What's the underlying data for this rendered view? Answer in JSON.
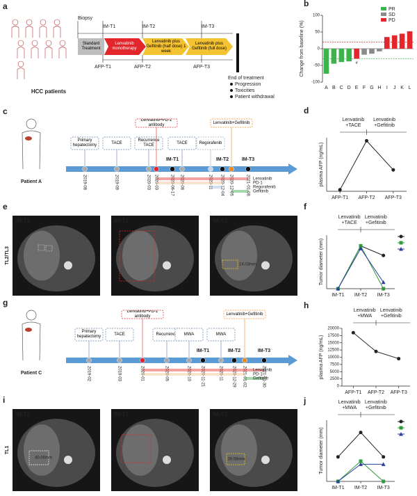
{
  "diagram_a": {
    "panel": "a",
    "caption": "HCC patients",
    "biopsy": "Biopsy",
    "imaging": [
      "IM-T1",
      "IM-T2",
      "IM-T3"
    ],
    "afp": [
      "AFP-T1",
      "AFP-T2",
      "AFP-T3"
    ],
    "stages": [
      "Standard Treatment",
      "Lenvatinib monotherapy",
      "Lenvatinib plus Gefitinib (half dose) 1 week",
      "Lenvatinib plus Gefitinib (full dose)"
    ],
    "end": "End of treatment",
    "end_reasons": [
      "Progression",
      "Toxicities",
      "Patient withdrawal"
    ]
  },
  "timeline_c": {
    "panel": "c",
    "patient": "Patient A",
    "dates": [
      "2019-08",
      "2019-09",
      "2020-03",
      "2020-03",
      "2020-06-17",
      "2020-08",
      "2020-11",
      "2020-12-04",
      "2020-12-05",
      "2021-01-08"
    ],
    "events": [
      "Primary hepatectomy",
      "TACE",
      "Recurrence TACE",
      "Lenvatinib+PD-1 antibody",
      "TACE",
      "Regorafenib",
      "Lenvatinib+Gefitinib"
    ],
    "imaging": [
      "IM-T1",
      "IM-T2",
      "IM-T3"
    ],
    "drugs": [
      {
        "name": "Lenvatinib",
        "color": "#e8352f"
      },
      {
        "name": "PD-1",
        "color": "#f6c28e"
      },
      {
        "name": "Regorafenib",
        "color": "#9db9e0"
      },
      {
        "name": "Gefitinib",
        "color": "#3aa54a"
      }
    ]
  },
  "images_e": {
    "panel": "e",
    "row_label": "TL2/TL3",
    "labels": [
      "IM-T1",
      "IM-T2",
      "IM-T3"
    ],
    "measure": "14.03mm"
  },
  "timeline_g": {
    "panel": "g",
    "patient": "Patient C",
    "dates": [
      "2019-02",
      "2019-03",
      "2020-01",
      "2020-05",
      "2020-10",
      "2020-11-21",
      "2020-11",
      "2020-12-29",
      "2021-01-02",
      "2021-01-30"
    ],
    "events": [
      "Primary hepatectomy",
      "TACE",
      "Lenvatinib+PD-1 antibody",
      "Recurrence",
      "MWA",
      "MWA",
      "Lenvatinib+Gefitinib"
    ],
    "imaging": [
      "IM-T1",
      "IM-T2",
      "IM-T3"
    ],
    "drugs": [
      {
        "name": "Lenvatinib",
        "color": "#e8352f"
      },
      {
        "name": "PD-1",
        "color": "#f6c28e"
      },
      {
        "name": "Gefitinib",
        "color": "#3aa54a"
      }
    ]
  },
  "images_i": {
    "panel": "i",
    "row_label": "TL1",
    "labels": [
      "IM-T1",
      "IM-T2",
      "IM-T3"
    ],
    "measures": [
      "40.00mm",
      "39.58mm"
    ]
  },
  "chart_data": [
    {
      "panel": "b",
      "type": "bar",
      "y_label": "Change from baseline (%)",
      "categories": [
        "A",
        "B",
        "C",
        "D",
        "E",
        "F",
        "G",
        "H",
        "I",
        "J",
        "K",
        "L"
      ],
      "values": [
        -75,
        -45,
        -40,
        -38,
        -30,
        -18,
        -15,
        -8,
        35,
        40,
        45,
        52
      ],
      "response": [
        "PR",
        "PR",
        "PR",
        "PR",
        "PD",
        "SD",
        "SD",
        "SD",
        "PD",
        "PD",
        "PD",
        "PD"
      ],
      "note": {
        "category": "E",
        "text": "#"
      },
      "legend": [
        {
          "name": "PR",
          "color": "#3cb44b"
        },
        {
          "name": "SD",
          "color": "#8a8a8a"
        },
        {
          "name": "PD",
          "color": "#e3262b"
        }
      ],
      "reference_lines": [
        {
          "value": 20,
          "color": "#c0282d"
        },
        {
          "value": -30,
          "color": "#3cb44b"
        }
      ],
      "ylim": [
        -100,
        100
      ],
      "yticks": [
        -100,
        -50,
        0,
        50,
        100
      ]
    },
    {
      "panel": "d",
      "type": "line",
      "y_label": "plasma AFP (ng/mL)",
      "categories": [
        "AFP-T1",
        "AFP-T2",
        "AFP-T3"
      ],
      "phases": [
        [
          "Lenvatinib",
          "+TACE"
        ],
        [
          "Lenvatinib",
          "+Gefitinib"
        ]
      ],
      "phase_colors": [
        [
          "#d9262b",
          "#222222"
        ],
        [
          "#d9262b",
          "#e88a1a"
        ]
      ],
      "series": [
        {
          "color": "#222222",
          "marker": "circle",
          "values": [
            10,
            330,
            140
          ]
        }
      ],
      "ylim": [
        0,
        350
      ]
    },
    {
      "panel": "f",
      "type": "line",
      "y_label": "Tumor diameter (mm)",
      "categories": [
        "IM-T1",
        "IM-T2",
        "IM-T3"
      ],
      "phases": [
        [
          "Lenvatinib",
          "+TACE"
        ],
        [
          "Lenvatinib",
          "+Gefitinib"
        ]
      ],
      "phase_colors": [
        [
          "#d9262b",
          "#222222"
        ],
        [
          "#d9262b",
          "#e88a1a"
        ]
      ],
      "series": [
        {
          "color": "#222222",
          "marker": "circle",
          "values": [
            0,
            80,
            62
          ]
        },
        {
          "color": "#2e9e3e",
          "marker": "square",
          "values": [
            0,
            80,
            0
          ]
        },
        {
          "color": "#2a3f9e",
          "marker": "triangle",
          "values": [
            0,
            75,
            12
          ]
        }
      ],
      "ylim": [
        0,
        100
      ],
      "legend": true
    },
    {
      "panel": "h",
      "type": "line",
      "y_label": "plasma AFP (ng/mL)",
      "categories": [
        "AFP-T1",
        "AFP-T2",
        "AFP-T3"
      ],
      "phases": [
        [
          "Lenvatinib",
          "+MWA"
        ],
        [
          "Lenvatinib",
          "+Gefitinib"
        ]
      ],
      "phase_colors": [
        [
          "#d9262b",
          "#222222"
        ],
        [
          "#d9262b",
          "#e88a1a"
        ]
      ],
      "series": [
        {
          "color": "#222222",
          "marker": "circle",
          "values": [
            18500,
            12000,
            9500
          ]
        }
      ],
      "ylim": [
        0,
        20000
      ],
      "yticks": [
        0,
        2500,
        5000,
        7500,
        10000,
        12500,
        15000,
        17500,
        20000
      ]
    },
    {
      "panel": "j",
      "type": "line",
      "y_label": "Tumor diameter (mm)",
      "categories": [
        "IM-T1",
        "IM-T2",
        "IM-T3"
      ],
      "phases": [
        [
          "Lenvatinib",
          "+MWA"
        ],
        [
          "Lenvatinib",
          "+Gefitinib"
        ]
      ],
      "phase_colors": [
        [
          "#d9262b",
          "#222222"
        ],
        [
          "#d9262b",
          "#e88a1a"
        ]
      ],
      "series": [
        {
          "color": "#222222",
          "marker": "circle",
          "values": [
            40,
            80,
            40
          ]
        },
        {
          "color": "#2e9e3e",
          "marker": "square",
          "values": [
            0,
            33,
            0
          ]
        },
        {
          "color": "#2a3f9e",
          "marker": "triangle",
          "values": [
            0,
            28,
            28
          ]
        }
      ],
      "ylim": [
        0,
        100
      ],
      "legend": true
    }
  ]
}
